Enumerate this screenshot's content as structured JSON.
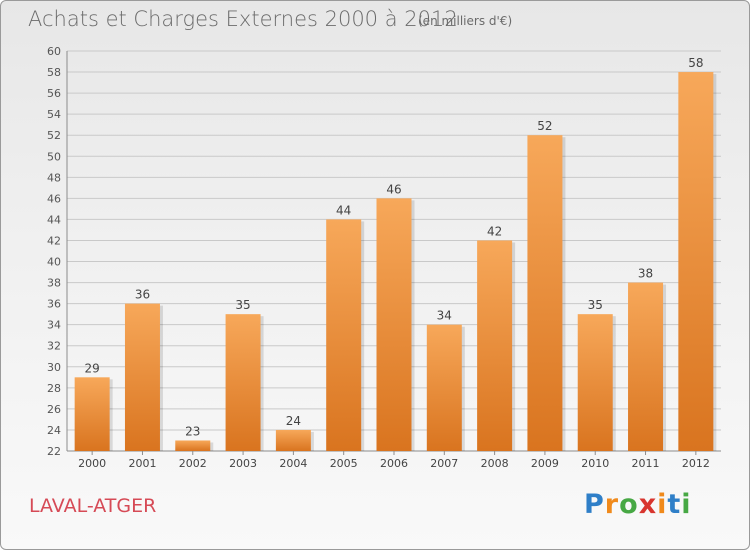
{
  "header": {
    "title": "Achats et Charges Externes 2000 à 2012",
    "unit": "(en milliers d'€)"
  },
  "location": "LAVAL-ATGER",
  "logo": {
    "text": "Proxiti",
    "colors": [
      "#2f7fc8",
      "#f08a1c",
      "#47a844",
      "#d8352e",
      "#f08a1c",
      "#2f7fc8",
      "#47a844"
    ]
  },
  "chart_data": {
    "type": "bar",
    "title": "Achats et Charges Externes 2000 à 2012",
    "subtitle": "(en milliers d'€)",
    "categories": [
      "2000",
      "2001",
      "2002",
      "2003",
      "2004",
      "2005",
      "2006",
      "2007",
      "2008",
      "2009",
      "2010",
      "2011",
      "2012"
    ],
    "values": [
      29,
      36,
      23,
      35,
      24,
      44,
      46,
      34,
      42,
      52,
      35,
      38,
      58
    ],
    "ylim": [
      22,
      60
    ],
    "yticks": [
      22,
      24,
      26,
      28,
      30,
      32,
      34,
      36,
      38,
      40,
      42,
      44,
      46,
      48,
      50,
      52,
      54,
      56,
      58,
      60
    ],
    "grid": true,
    "data_labels": true,
    "bar_color_top": "#f7a85a",
    "bar_color_bottom": "#d9741f"
  }
}
